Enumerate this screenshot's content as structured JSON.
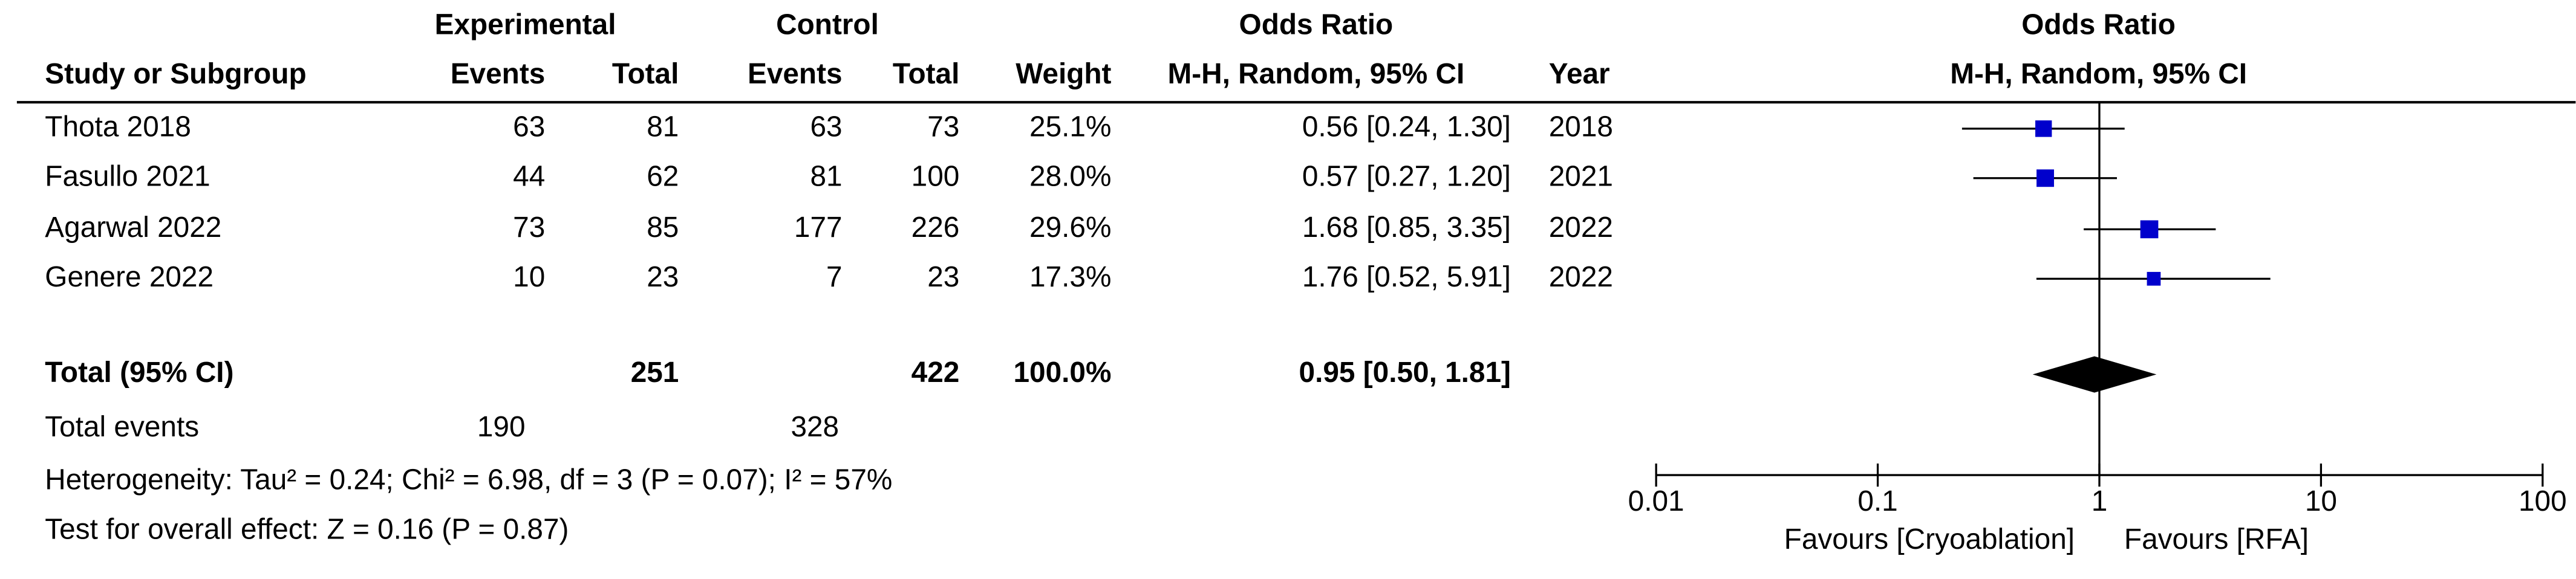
{
  "chart_data": {
    "type": "forest",
    "column_groups": [
      "Experimental",
      "Control",
      "Odds Ratio"
    ],
    "columns": [
      "Study or Subgroup",
      "Events",
      "Total",
      "Events",
      "Total",
      "Weight",
      "M-H, Random, 95% CI",
      "Year"
    ],
    "plot_title": "Odds Ratio",
    "plot_subtitle": "M-H, Random, 95% CI",
    "studies": [
      {
        "name": "Thota 2018",
        "exp_events": 63,
        "exp_total": 81,
        "ctl_events": 63,
        "ctl_total": 73,
        "weight": 25.1,
        "weight_label": "25.1%",
        "or": 0.56,
        "ci_low": 0.24,
        "ci_high": 1.3,
        "or_label": "0.56 [0.24, 1.30]",
        "year": 2018
      },
      {
        "name": "Fasullo 2021",
        "exp_events": 44,
        "exp_total": 62,
        "ctl_events": 81,
        "ctl_total": 100,
        "weight": 28.0,
        "weight_label": "28.0%",
        "or": 0.57,
        "ci_low": 0.27,
        "ci_high": 1.2,
        "or_label": "0.57 [0.27, 1.20]",
        "year": 2021
      },
      {
        "name": "Agarwal 2022",
        "exp_events": 73,
        "exp_total": 85,
        "ctl_events": 177,
        "ctl_total": 226,
        "weight": 29.6,
        "weight_label": "29.6%",
        "or": 1.68,
        "ci_low": 0.85,
        "ci_high": 3.35,
        "or_label": "1.68 [0.85, 3.35]",
        "year": 2022
      },
      {
        "name": "Genere 2022",
        "exp_events": 10,
        "exp_total": 23,
        "ctl_events": 7,
        "ctl_total": 23,
        "weight": 17.3,
        "weight_label": "17.3%",
        "or": 1.76,
        "ci_low": 0.52,
        "ci_high": 5.91,
        "or_label": "1.76 [0.52, 5.91]",
        "year": 2022
      }
    ],
    "total": {
      "name": "Total (95% CI)",
      "exp_total": 251,
      "ctl_total": 422,
      "weight": 100.0,
      "weight_label": "100.0%",
      "or": 0.95,
      "ci_low": 0.5,
      "ci_high": 1.81,
      "or_label": "0.95 [0.50, 1.81]"
    },
    "total_events": {
      "name": "Total events",
      "exp": 190,
      "ctl": 328
    },
    "heterogeneity": "Heterogeneity: Tau² = 0.24; Chi² = 6.98, df = 3 (P = 0.07); I² = 57%",
    "overall_effect": "Test for overall effect: Z = 0.16 (P = 0.87)",
    "xscale": "log",
    "xlim": [
      0.01,
      100
    ],
    "xticks": [
      0.01,
      0.1,
      1,
      10,
      100
    ],
    "xlabels": [
      "Favours [Cryoablation]",
      "Favours [RFA]"
    ],
    "color": "#0000cc"
  }
}
